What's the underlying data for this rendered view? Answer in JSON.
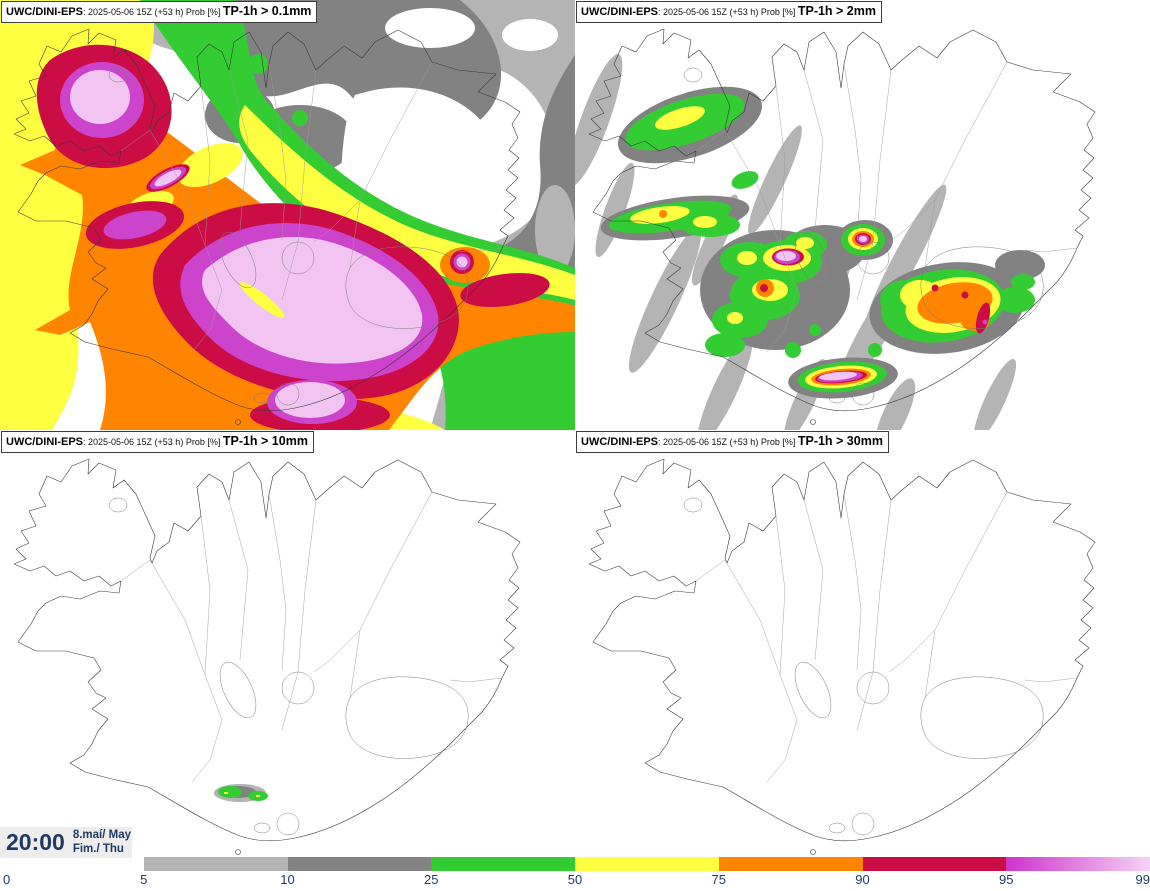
{
  "panels": [
    {
      "id": "tp1h-gt-0p1mm",
      "model": "UWC/DINI-EPS",
      "run": ": 2025-05-06 15Z (+53 h) Prob [%] ",
      "threshold": "TP-1h > 0.1mm"
    },
    {
      "id": "tp1h-gt-2mm",
      "model": "UWC/DINI-EPS",
      "run": ": 2025-05-06 15Z (+53 h) Prob [%] ",
      "threshold": "TP-1h > 2mm"
    },
    {
      "id": "tp1h-gt-10mm",
      "model": "UWC/DINI-EPS",
      "run": ": 2025-05-06 15Z (+53 h) Prob [%] ",
      "threshold": "TP-1h > 10mm"
    },
    {
      "id": "tp1h-gt-30mm",
      "model": "UWC/DINI-EPS",
      "run": ": 2025-05-06 15Z (+53 h) Prob [%] ",
      "threshold": "TP-1h > 30mm"
    }
  ],
  "clock": {
    "time": "20:00",
    "date": "8.maí/ May",
    "day": "Fim./ Thu"
  },
  "legend": {
    "boundaries": [
      "0",
      "5",
      "10",
      "25",
      "50",
      "75",
      "90",
      "95",
      "99"
    ],
    "segments": [
      {
        "range": "5-10",
        "color": "#b4b4b4"
      },
      {
        "range": "10-25",
        "color": "#828282"
      },
      {
        "range": "25-50",
        "color": "#33cc33"
      },
      {
        "range": "50-75",
        "color": "#ffff42"
      },
      {
        "range": "75-90",
        "color": "#ff8400"
      },
      {
        "range": "90-95",
        "color": "#cc0c44"
      },
      {
        "range": "95-99",
        "gradient": true,
        "from": "#cc33cc",
        "to": "#f6d2f6"
      }
    ]
  },
  "palette": {
    "lightgray": "#b4b4b4",
    "darkgray": "#828282",
    "green": "#33cc33",
    "yellow": "#ffff42",
    "orange": "#ff8400",
    "crimson": "#cc0c44",
    "magenta": "#cc44cc",
    "pink": "#f2c4f2",
    "label": "#1e3a64",
    "coast": "#3a3a3a"
  }
}
